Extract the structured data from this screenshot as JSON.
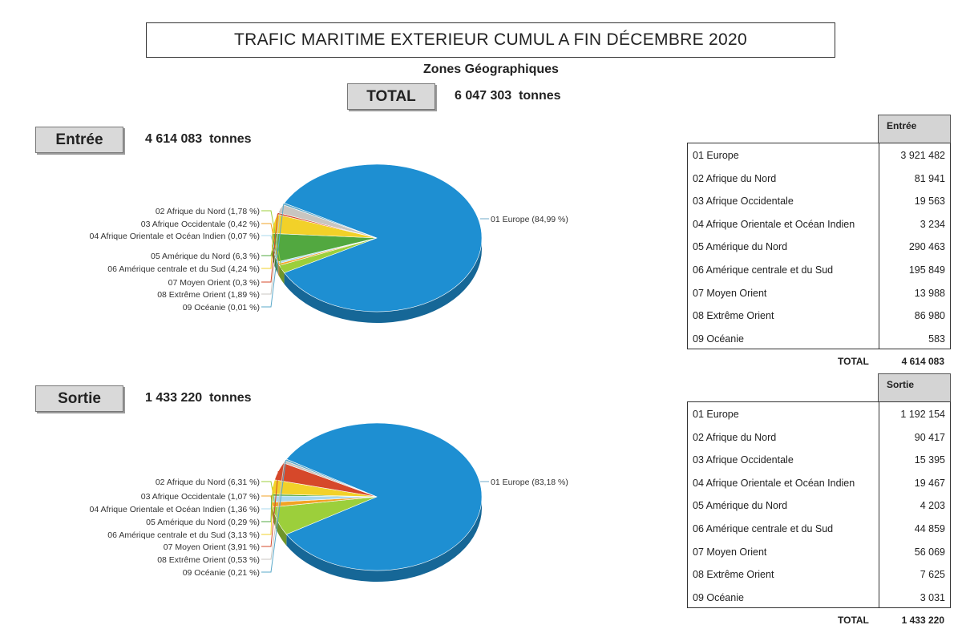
{
  "title": "TRAFIC MARITIME EXTERIEUR CUMUL A FIN DÉCEMBRE 2020",
  "subtitle": "Zones Géographiques",
  "total": {
    "label": "TOTAL",
    "value": "6 047 303  tonnes"
  },
  "colors": [
    "#1e8fd2",
    "#9ccf3b",
    "#f2a324",
    "#a9d8ee",
    "#52a840",
    "#f2d129",
    "#d6482a",
    "#c8c5c0",
    "#5aa8c9"
  ],
  "chart_data": [
    {
      "type": "pie",
      "title": "Entrée",
      "total_label": "4 614 083  tonnes",
      "categories": [
        "01 Europe",
        "02 Afrique du Nord",
        "03 Afrique Occidentale",
        "04 Afrique Orientale et Océan Indien",
        "05 Amérique du Nord",
        "06 Amérique centrale et du Sud",
        "07 Moyen Orient",
        "08 Extrême Orient",
        "09 Océanie"
      ],
      "percentages": [
        84.99,
        1.78,
        0.42,
        0.07,
        6.3,
        4.24,
        0.3,
        1.89,
        0.01
      ],
      "labels": [
        "01 Europe (84,99 %)",
        "02 Afrique du Nord (1,78 %)",
        "03 Afrique Occidentale (0,42 %)",
        "04 Afrique Orientale et Océan Indien (0,07 %)",
        "05 Amérique du Nord (6,3 %)",
        "06 Amérique centrale et du Sud (4,24 %)",
        "07 Moyen Orient (0,3 %)",
        "08 Extrême Orient (1,89 %)",
        "09 Océanie (0,01 %)"
      ],
      "slice_colors": [
        "#1e8fd2",
        "#9ccf3b",
        "#f2a324",
        "#a9d8ee",
        "#52a840",
        "#f2d129",
        "#d6482a",
        "#c8c5c0",
        "#5aa8c9"
      ]
    },
    {
      "type": "pie",
      "title": "Sortie",
      "total_label": "1 433 220  tonnes",
      "categories": [
        "01 Europe",
        "02 Afrique du Nord",
        "03 Afrique Occidentale",
        "04 Afrique Orientale et Océan Indien",
        "05 Amérique du Nord",
        "06 Amérique centrale et du Sud",
        "07 Moyen Orient",
        "08 Extrême Orient",
        "09 Océanie"
      ],
      "percentages": [
        83.18,
        6.31,
        1.07,
        1.36,
        0.29,
        3.13,
        3.91,
        0.53,
        0.21
      ],
      "labels": [
        "01 Europe (83,18 %)",
        "02 Afrique du Nord (6,31 %)",
        "03 Afrique Occidentale (1,07 %)",
        "04 Afrique Orientale et Océan Indien (1,36 %)",
        "05 Amérique du Nord (0,29 %)",
        "06 Amérique centrale et du Sud (3,13 %)",
        "07 Moyen Orient (3,91 %)",
        "08 Extrême Orient (0,53 %)",
        "09 Océanie (0,21 %)"
      ],
      "slice_colors": [
        "#1e8fd2",
        "#9ccf3b",
        "#f2a324",
        "#a9d8ee",
        "#52a840",
        "#f2d129",
        "#d6482a",
        "#c8c5c0",
        "#5aa8c9"
      ]
    }
  ],
  "tables": [
    {
      "header": "Entrée",
      "rows": [
        {
          "label": "01 Europe",
          "value": "3 921 482"
        },
        {
          "label": "02 Afrique du Nord",
          "value": "81 941"
        },
        {
          "label": "03 Afrique Occidentale",
          "value": "19 563"
        },
        {
          "label": "04 Afrique Orientale et Océan Indien",
          "value": "3 234"
        },
        {
          "label": "05 Amérique du Nord",
          "value": "290 463"
        },
        {
          "label": "06 Amérique centrale et du Sud",
          "value": "195 849"
        },
        {
          "label": "07 Moyen Orient",
          "value": "13 988"
        },
        {
          "label": "08 Extrême Orient",
          "value": "86 980"
        },
        {
          "label": "09 Océanie",
          "value": "583"
        }
      ],
      "total_label": "TOTAL",
      "total_value": "4 614 083"
    },
    {
      "header": "Sortie",
      "rows": [
        {
          "label": "01 Europe",
          "value": "1 192 154"
        },
        {
          "label": "02 Afrique du Nord",
          "value": "90 417"
        },
        {
          "label": "03 Afrique Occidentale",
          "value": "15 395"
        },
        {
          "label": "04 Afrique Orientale et Océan Indien",
          "value": "19 467"
        },
        {
          "label": "05 Amérique du Nord",
          "value": "4 203"
        },
        {
          "label": "06 Amérique centrale et du Sud",
          "value": "44 859"
        },
        {
          "label": "07 Moyen Orient",
          "value": "56 069"
        },
        {
          "label": "08 Extrême Orient",
          "value": "7 625"
        },
        {
          "label": "09 Océanie",
          "value": "3 031"
        }
      ],
      "total_label": "TOTAL",
      "total_value": "1 433 220"
    }
  ]
}
